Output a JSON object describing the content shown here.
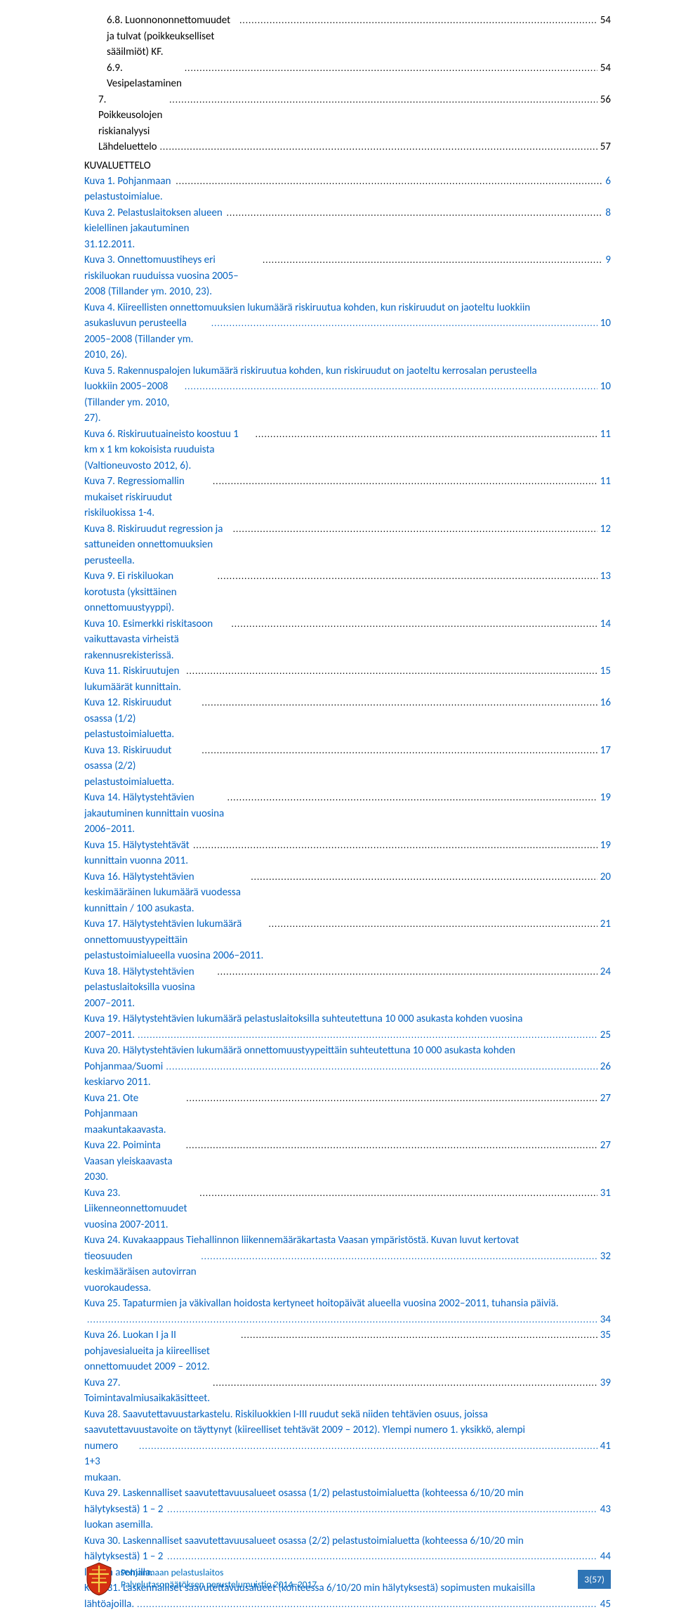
{
  "toc": [
    {
      "type": "row",
      "style": "black",
      "indent": 1,
      "label": "6.8.  Luonnononnettomuudet ja tulvat (poikkeukselliset sääilmiöt) KF.",
      "page": "54"
    },
    {
      "type": "row",
      "style": "black",
      "indent": 1,
      "label": "6.9.  Vesipelastaminen",
      "page": "54"
    },
    {
      "type": "row",
      "style": "black",
      "indent": 0,
      "label": "7.   Poikkeusolojen riskianalyysi",
      "page": "56"
    },
    {
      "type": "row",
      "style": "black",
      "indent": 0,
      "label": "Lähdeluettelo",
      "page": "57"
    }
  ],
  "kuvaluettelo_heading": "KUVALUETTELO",
  "kuva": [
    {
      "type": "row",
      "label": "Kuva 1. Pohjanmaan pelastustoimialue.",
      "page": "6"
    },
    {
      "type": "row",
      "label": "Kuva 2. Pelastuslaitoksen alueen kielellinen jakautuminen 31.12.2011.",
      "page": "8"
    },
    {
      "type": "row",
      "label": "Kuva 3. Onnettomuustiheys eri riskiluokan ruuduissa vuosina 2005–2008 (Tillander ym. 2010, 23).",
      "page": "9"
    },
    {
      "type": "multi",
      "line1": "Kuva 4. Kiireellisten onnettomuuksien lukumäärä riskiruutua kohden, kun riskiruudut on jaoteltu luokkiin",
      "line2": "asukasluvun perusteella 2005–2008 (Tillander ym. 2010, 26).",
      "page": "10"
    },
    {
      "type": "multi",
      "line1": "Kuva 5. Rakennuspalojen lukumäärä riskiruutua kohden, kun riskiruudut on jaoteltu kerrosalan perusteella",
      "line2": "luokkiin 2005–2008 (Tillander ym. 2010, 27).",
      "page": "10"
    },
    {
      "type": "row",
      "label": "Kuva 6. Riskiruutuaineisto koostuu 1 km x 1 km kokoisista ruuduista (Valtioneuvosto 2012, 6).",
      "page": "11"
    },
    {
      "type": "row",
      "label": "Kuva 7. Regressiomallin mukaiset riskiruudut riskiluokissa 1-4.",
      "page": "11"
    },
    {
      "type": "row",
      "label": "Kuva 8. Riskiruudut regression ja sattuneiden onnettomuuksien perusteella.",
      "page": "12"
    },
    {
      "type": "row",
      "label": "Kuva 9. Ei riskiluokan korotusta (yksittäinen onnettomuustyyppi).",
      "page": "13"
    },
    {
      "type": "row",
      "label": "Kuva 10. Esimerkki riskitasoon vaikuttavasta virheistä rakennusrekisterissä.",
      "page": "14"
    },
    {
      "type": "row",
      "label": "Kuva 11. Riskiruutujen lukumäärät kunnittain.",
      "page": "15"
    },
    {
      "type": "row",
      "label": "Kuva 12. Riskiruudut osassa (1/2) pelastustoimialuetta.",
      "page": "16"
    },
    {
      "type": "row",
      "label": "Kuva 13. Riskiruudut osassa (2/2) pelastustoimialuetta.",
      "page": "17"
    },
    {
      "type": "row",
      "label": "Kuva 14. Hälytystehtävien jakautuminen kunnittain vuosina 2006–2011.",
      "page": "19"
    },
    {
      "type": "row",
      "label": "Kuva 15. Hälytystehtävät kunnittain vuonna 2011.",
      "page": "19"
    },
    {
      "type": "row",
      "label": "Kuva 16. Hälytystehtävien keskimääräinen lukumäärä vuodessa kunnittain / 100 asukasta.",
      "page": "20"
    },
    {
      "type": "row",
      "label": "Kuva 17. Hälytystehtävien lukumäärä onnettomuustyypeittäin pelastustoimialueella vuosina 2006−2011.",
      "page": "21"
    },
    {
      "type": "row",
      "label": "Kuva 18. Hälytystehtävien pelastuslaitoksilla vuosina 2007−2011.",
      "page": "24"
    },
    {
      "type": "multi",
      "line1": "Kuva 19. Hälytystehtävien lukumäärä pelastuslaitoksilla suhteutettuna 10 000 asukasta kohden vuosina",
      "line2": "2007−2011.",
      "page": "25"
    },
    {
      "type": "multi",
      "line1": "Kuva 20. Hälytystehtävien lukumäärä onnettomuustyypeittäin suhteutettuna 10 000 asukasta kohden",
      "line2": "Pohjanmaa/Suomi keskiarvo 2011.",
      "page": "26"
    },
    {
      "type": "row",
      "label": "Kuva 21. Ote Pohjanmaan maakuntakaavasta.",
      "page": "27"
    },
    {
      "type": "row",
      "label": "Kuva 22. Poiminta Vaasan yleiskaavasta 2030.",
      "page": "27"
    },
    {
      "type": "row",
      "label": "Kuva 23. Liikenneonnettomuudet vuosina 2007-2011.",
      "page": "31"
    },
    {
      "type": "multi",
      "line1": "Kuva 24. Kuvakaappaus Tiehallinnon liikennemääräkartasta Vaasan ympäristöstä. Kuvan luvut kertovat",
      "line2": "tieosuuden keskimääräisen autovirran vuorokaudessa.",
      "page": "32"
    },
    {
      "type": "multi",
      "line1": "Kuva 25. Tapaturmien ja väkivallan hoidosta kertyneet hoitopäivät alueella vuosina 2002–2011, tuhansia päiviä.",
      "line2": "",
      "page": "34"
    },
    {
      "type": "row",
      "label": "Kuva 26. Luokan I ja II pohjavesialueita ja kiireelliset onnettomuudet 2009 – 2012.",
      "page": "35"
    },
    {
      "type": "row",
      "label": "Kuva 27. Toimintavalmiusaikakäsitteet.",
      "page": "39"
    },
    {
      "type": "multi",
      "line1": "Kuva 28. Saavutettavuustarkastelu. Riskiluokkien I-III ruudut sekä niiden tehtävien osuus, joissa",
      "line2_multi": [
        "saavutettavuustavoite on täyttynyt (kiireelliset tehtävät 2009 – 2012). Ylempi numero 1. yksikkö, alempi"
      ],
      "line3": "numero 1+3 mukaan.",
      "page": "41"
    },
    {
      "type": "multi",
      "line1": "Kuva 29. Laskennalliset saavutettavuusalueet osassa (1/2) pelastustoimialuetta (kohteessa 6/10/20 min",
      "line2": "hälytyksestä) 1 – 2 luokan asemilla.",
      "page": "43"
    },
    {
      "type": "multi",
      "line1": "Kuva 30. Laskennalliset saavutettavuusalueet osassa (2/2) pelastustoimialuetta (kohteessa 6/10/20 min",
      "line2": "hälytyksestä) 1 – 2 luokan asemilla.",
      "page": "44"
    },
    {
      "type": "multi",
      "line1": "Kuva 31. Laskennalliset saavutettavuusalueet (kohteessa 6/10/20 min hälytyksestä) sopimusten mukaisilla",
      "line2": "lähtöajoilla.",
      "page": "45"
    }
  ],
  "footer": {
    "line1": "Pohjanmaan pelastuslaitos",
    "line2": "Palvelutasopäätöksen perustelumuistio 2014−2017",
    "page_label": "3(57)"
  },
  "colors": {
    "link": "#0563c1",
    "footer_text": "#0070c0",
    "footer_badge_bg": "#2e74b5",
    "footer_badge_fg": "#ffffff"
  }
}
